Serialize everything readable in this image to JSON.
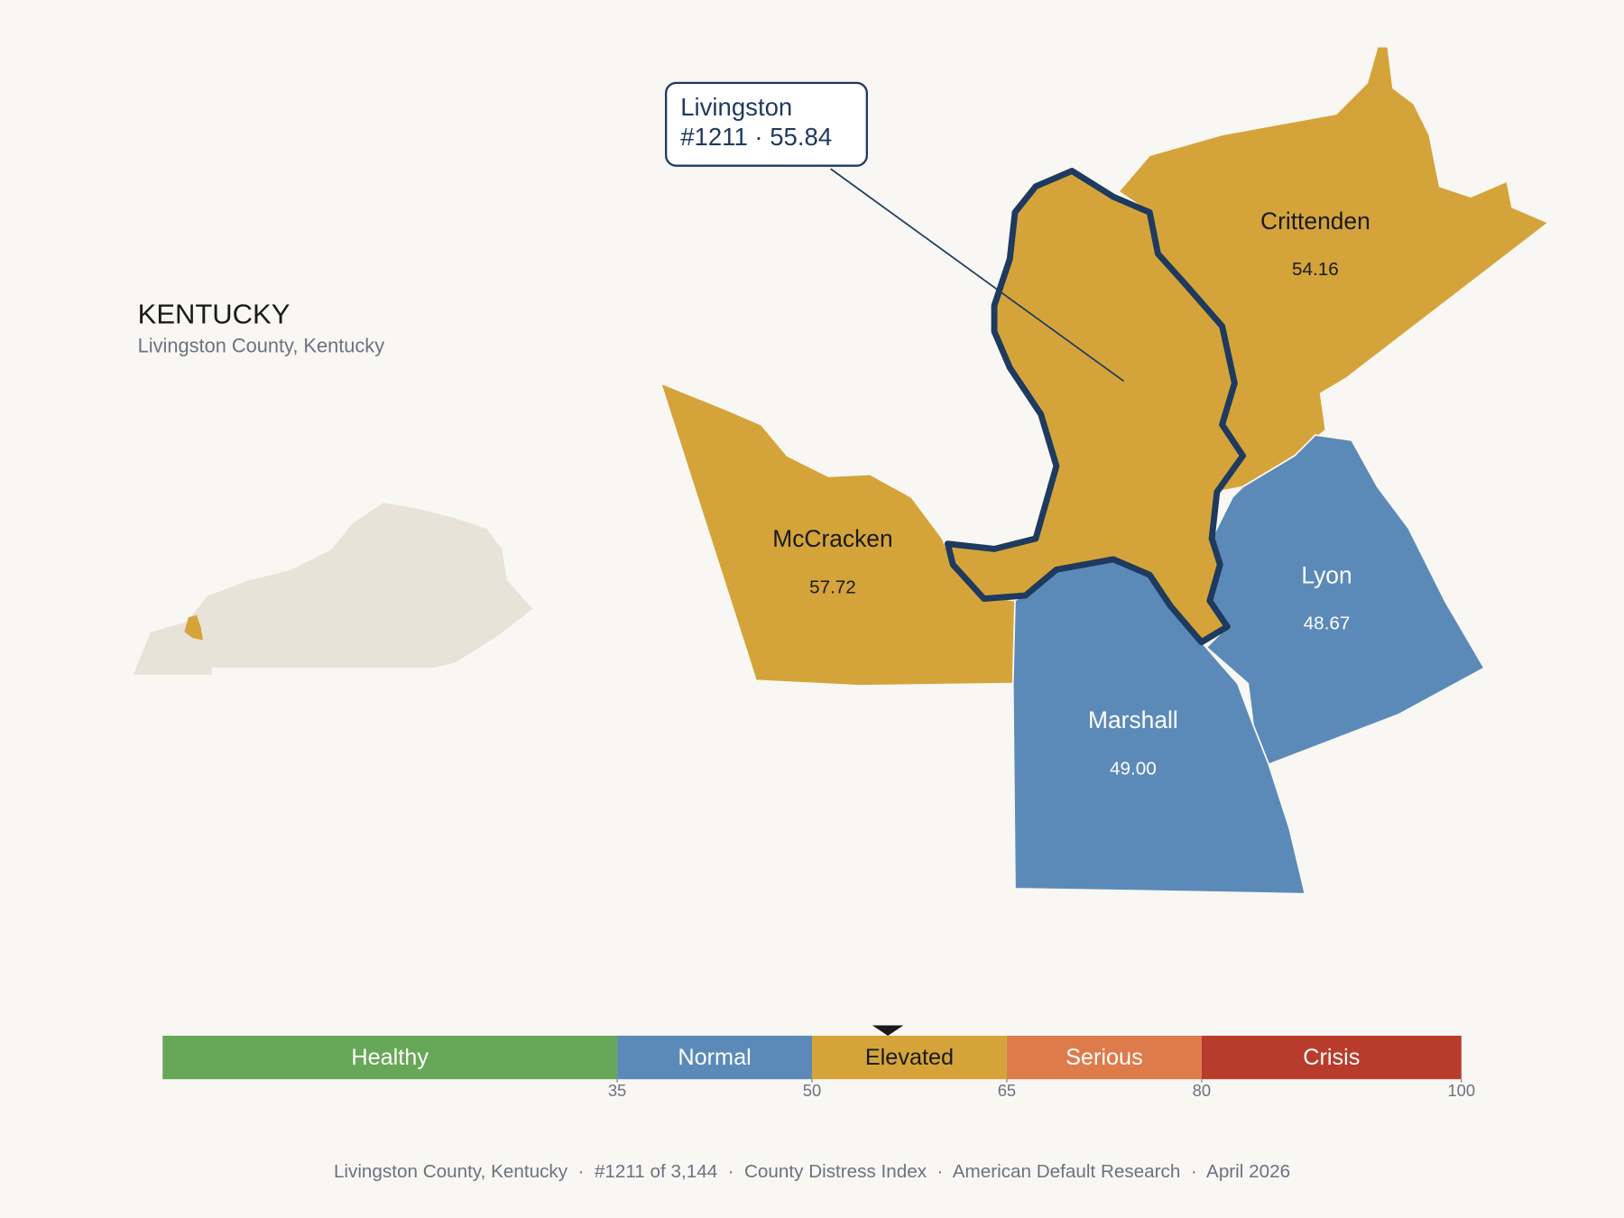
{
  "state": {
    "name": "KENTUCKY",
    "subtitle": "Livingston County, Kentucky"
  },
  "callout": {
    "title": "Livingston",
    "detail": "#1211 · 55.84"
  },
  "counties": [
    {
      "name": "Crittenden",
      "value": "54.16"
    },
    {
      "name": "McCracken",
      "value": "57.72"
    },
    {
      "name": "Lyon",
      "value": "48.67"
    },
    {
      "name": "Marshall",
      "value": "49.00"
    }
  ],
  "selected": {
    "name": "Livingston",
    "score": 55.84
  },
  "scale": {
    "min": 0,
    "ticks": [
      35,
      50,
      65,
      80,
      100
    ],
    "bands": [
      {
        "label": "Healthy",
        "color": "#67a758",
        "text_color": "#ffffff"
      },
      {
        "label": "Normal",
        "color": "#5b8ab8",
        "text_color": "#ffffff"
      },
      {
        "label": "Elevated",
        "color": "#d4a43a",
        "text_color": "#1a1a1a"
      },
      {
        "label": "Serious",
        "color": "#de7b4b",
        "text_color": "#ffffff"
      },
      {
        "label": "Crisis",
        "color": "#b83c2c",
        "text_color": "#ffffff"
      }
    ]
  },
  "footer": "Livingston County, Kentucky  ·  #1211 of 3,144  ·  County Distress Index  ·  American Default Research  ·  April 2026"
}
